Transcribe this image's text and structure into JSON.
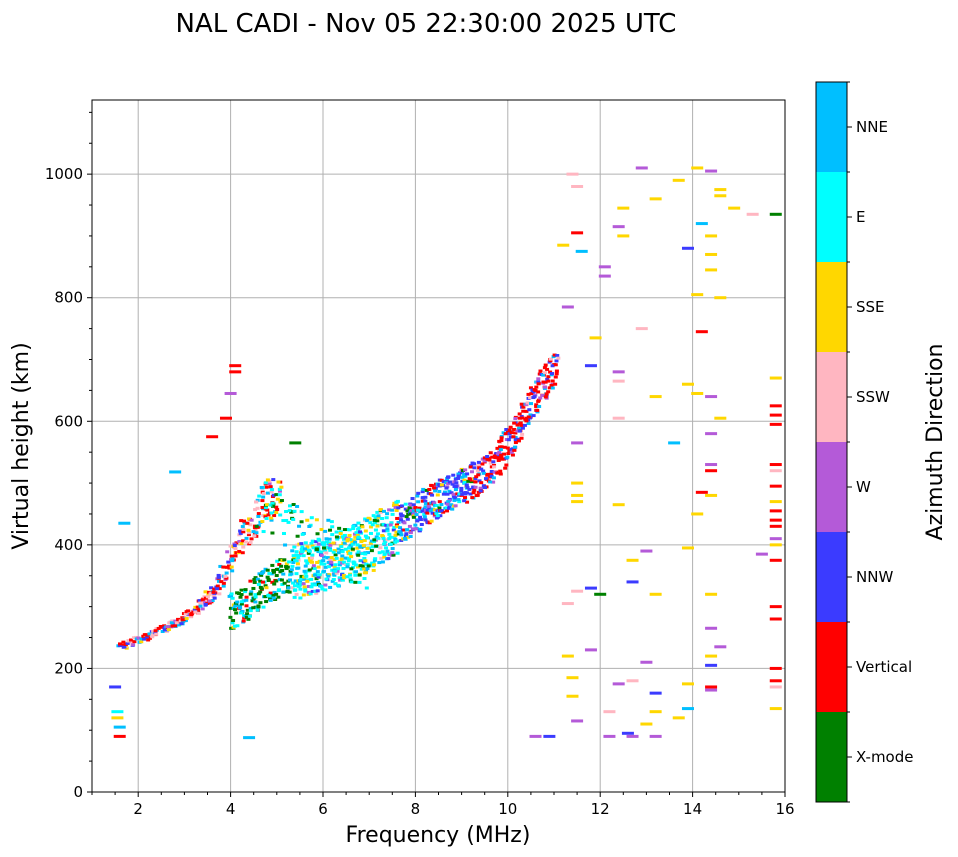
{
  "chart_data": {
    "type": "scatter",
    "title": "NAL CADI - Nov 05 22:30:00 2025 UTC",
    "xlabel": "Frequency (MHz)",
    "ylabel": "Virtual height (km)",
    "xlim": [
      1,
      16
    ],
    "ylim": [
      0,
      1120
    ],
    "xticks": [
      2,
      4,
      6,
      8,
      10,
      12,
      14,
      16
    ],
    "yticks": [
      0,
      200,
      400,
      600,
      800,
      1000
    ],
    "grid": true,
    "colorbar": {
      "label": "Azimuth Direction",
      "categories": [
        {
          "name": "X-mode",
          "color": "#008000"
        },
        {
          "name": "Vertical",
          "color": "#ff0000"
        },
        {
          "name": "NNW",
          "color": "#3b3bff"
        },
        {
          "name": "W",
          "color": "#b45ad8"
        },
        {
          "name": "SSW",
          "color": "#ffb6c1"
        },
        {
          "name": "SSE",
          "color": "#ffd700"
        },
        {
          "name": "E",
          "color": "#00ffff"
        },
        {
          "name": "NNE",
          "color": "#00bfff"
        }
      ]
    },
    "traces": [
      {
        "name": "F-layer ordinary trace",
        "points": [
          [
            1.6,
            235
          ],
          [
            1.8,
            240
          ],
          [
            2.0,
            248
          ],
          [
            2.2,
            252
          ],
          [
            2.4,
            258
          ],
          [
            2.6,
            265
          ],
          [
            2.8,
            272
          ],
          [
            3.0,
            280
          ],
          [
            3.2,
            292
          ],
          [
            3.4,
            305
          ],
          [
            3.6,
            322
          ],
          [
            3.8,
            345
          ],
          [
            4.0,
            370
          ],
          [
            4.2,
            400
          ],
          [
            4.4,
            430
          ],
          [
            4.6,
            455
          ],
          [
            4.8,
            470
          ],
          [
            5.0,
            480
          ]
        ]
      },
      {
        "name": "F-layer main trace",
        "points": [
          [
            4.0,
            290
          ],
          [
            4.4,
            310
          ],
          [
            4.8,
            335
          ],
          [
            5.2,
            350
          ],
          [
            5.6,
            360
          ],
          [
            6.0,
            370
          ],
          [
            6.4,
            378
          ],
          [
            6.8,
            392
          ],
          [
            7.2,
            410
          ],
          [
            7.6,
            430
          ],
          [
            8.0,
            450
          ],
          [
            8.4,
            470
          ],
          [
            8.8,
            485
          ],
          [
            9.2,
            500
          ],
          [
            9.6,
            520
          ],
          [
            10.0,
            560
          ],
          [
            10.3,
            600
          ],
          [
            10.6,
            640
          ],
          [
            10.9,
            670
          ],
          [
            11.1,
            690
          ]
        ]
      },
      {
        "name": "Upper spread",
        "points": [
          [
            4.6,
            510
          ],
          [
            5.0,
            500
          ],
          [
            5.4,
            470
          ],
          [
            5.8,
            450
          ],
          [
            6.2,
            440
          ],
          [
            6.6,
            430
          ],
          [
            7.0,
            420
          ]
        ]
      }
    ],
    "sparse_echoes": [
      {
        "x": 1.5,
        "y": 170,
        "az": "NNW"
      },
      {
        "x": 1.55,
        "y": 130,
        "az": "E"
      },
      {
        "x": 1.55,
        "y": 120,
        "az": "SSE"
      },
      {
        "x": 1.6,
        "y": 105,
        "az": "NNE"
      },
      {
        "x": 1.6,
        "y": 90,
        "az": "Vertical"
      },
      {
        "x": 1.7,
        "y": 435,
        "az": "NNE"
      },
      {
        "x": 4.1,
        "y": 690,
        "az": "Vertical"
      },
      {
        "x": 4.1,
        "y": 680,
        "az": "Vertical"
      },
      {
        "x": 4.0,
        "y": 645,
        "az": "W"
      },
      {
        "x": 3.9,
        "y": 605,
        "az": "Vertical"
      },
      {
        "x": 3.6,
        "y": 575,
        "az": "Vertical"
      },
      {
        "x": 2.8,
        "y": 518,
        "az": "NNE"
      },
      {
        "x": 4.4,
        "y": 88,
        "az": "NNE"
      },
      {
        "x": 5.4,
        "y": 565,
        "az": "X-mode"
      },
      {
        "x": 11.4,
        "y": 1000,
        "az": "SSW"
      },
      {
        "x": 11.5,
        "y": 980,
        "az": "SSW"
      },
      {
        "x": 11.2,
        "y": 885,
        "az": "SSE"
      },
      {
        "x": 11.5,
        "y": 905,
        "az": "Vertical"
      },
      {
        "x": 11.6,
        "y": 875,
        "az": "NNE"
      },
      {
        "x": 11.3,
        "y": 785,
        "az": "W"
      },
      {
        "x": 11.9,
        "y": 735,
        "az": "SSE"
      },
      {
        "x": 11.8,
        "y": 690,
        "az": "NNW"
      },
      {
        "x": 12.1,
        "y": 850,
        "az": "W"
      },
      {
        "x": 12.1,
        "y": 835,
        "az": "W"
      },
      {
        "x": 12.5,
        "y": 945,
        "az": "SSE"
      },
      {
        "x": 12.4,
        "y": 915,
        "az": "W"
      },
      {
        "x": 12.5,
        "y": 900,
        "az": "SSE"
      },
      {
        "x": 13.2,
        "y": 960,
        "az": "SSE"
      },
      {
        "x": 12.9,
        "y": 1010,
        "az": "W"
      },
      {
        "x": 13.7,
        "y": 990,
        "az": "SSE"
      },
      {
        "x": 14.1,
        "y": 1010,
        "az": "SSE"
      },
      {
        "x": 14.4,
        "y": 1005,
        "az": "W"
      },
      {
        "x": 14.6,
        "y": 975,
        "az": "SSE"
      },
      {
        "x": 14.6,
        "y": 965,
        "az": "SSE"
      },
      {
        "x": 14.9,
        "y": 945,
        "az": "SSE"
      },
      {
        "x": 15.3,
        "y": 935,
        "az": "SSW"
      },
      {
        "x": 15.8,
        "y": 935,
        "az": "X-mode"
      },
      {
        "x": 14.2,
        "y": 920,
        "az": "NNE"
      },
      {
        "x": 14.4,
        "y": 900,
        "az": "SSE"
      },
      {
        "x": 13.9,
        "y": 880,
        "az": "NNW"
      },
      {
        "x": 14.4,
        "y": 845,
        "az": "SSE"
      },
      {
        "x": 14.4,
        "y": 870,
        "az": "SSE"
      },
      {
        "x": 14.1,
        "y": 805,
        "az": "SSE"
      },
      {
        "x": 14.6,
        "y": 800,
        "az": "SSE"
      },
      {
        "x": 12.9,
        "y": 750,
        "az": "SSW"
      },
      {
        "x": 14.2,
        "y": 745,
        "az": "Vertical"
      },
      {
        "x": 12.4,
        "y": 680,
        "az": "W"
      },
      {
        "x": 12.4,
        "y": 665,
        "az": "SSW"
      },
      {
        "x": 13.2,
        "y": 640,
        "az": "SSE"
      },
      {
        "x": 13.9,
        "y": 660,
        "az": "SSE"
      },
      {
        "x": 14.1,
        "y": 645,
        "az": "SSE"
      },
      {
        "x": 14.4,
        "y": 640,
        "az": "W"
      },
      {
        "x": 14.6,
        "y": 605,
        "az": "SSE"
      },
      {
        "x": 12.4,
        "y": 605,
        "az": "SSW"
      },
      {
        "x": 13.6,
        "y": 565,
        "az": "NNE"
      },
      {
        "x": 14.4,
        "y": 580,
        "az": "W"
      },
      {
        "x": 14.4,
        "y": 530,
        "az": "W"
      },
      {
        "x": 14.4,
        "y": 520,
        "az": "Vertical"
      },
      {
        "x": 14.2,
        "y": 485,
        "az": "Vertical"
      },
      {
        "x": 14.4,
        "y": 480,
        "az": "SSE"
      },
      {
        "x": 14.1,
        "y": 450,
        "az": "SSE"
      },
      {
        "x": 11.5,
        "y": 565,
        "az": "W"
      },
      {
        "x": 11.5,
        "y": 500,
        "az": "SSE"
      },
      {
        "x": 11.5,
        "y": 480,
        "az": "SSE"
      },
      {
        "x": 11.5,
        "y": 470,
        "az": "SSE"
      },
      {
        "x": 12.4,
        "y": 465,
        "az": "SSE"
      },
      {
        "x": 12.7,
        "y": 375,
        "az": "SSE"
      },
      {
        "x": 13.0,
        "y": 390,
        "az": "W"
      },
      {
        "x": 13.9,
        "y": 395,
        "az": "SSE"
      },
      {
        "x": 12.7,
        "y": 340,
        "az": "NNW"
      },
      {
        "x": 13.2,
        "y": 320,
        "az": "SSE"
      },
      {
        "x": 11.5,
        "y": 325,
        "az": "SSW"
      },
      {
        "x": 11.8,
        "y": 330,
        "az": "NNW"
      },
      {
        "x": 12.0,
        "y": 320,
        "az": "X-mode"
      },
      {
        "x": 11.3,
        "y": 305,
        "az": "SSW"
      },
      {
        "x": 14.4,
        "y": 320,
        "az": "SSE"
      },
      {
        "x": 14.4,
        "y": 265,
        "az": "W"
      },
      {
        "x": 14.6,
        "y": 235,
        "az": "W"
      },
      {
        "x": 14.4,
        "y": 220,
        "az": "SSE"
      },
      {
        "x": 14.4,
        "y": 205,
        "az": "NNW"
      },
      {
        "x": 11.8,
        "y": 230,
        "az": "W"
      },
      {
        "x": 11.3,
        "y": 220,
        "az": "SSE"
      },
      {
        "x": 11.4,
        "y": 185,
        "az": "SSE"
      },
      {
        "x": 11.4,
        "y": 155,
        "az": "SSE"
      },
      {
        "x": 12.4,
        "y": 175,
        "az": "W"
      },
      {
        "x": 12.7,
        "y": 180,
        "az": "SSW"
      },
      {
        "x": 13.0,
        "y": 210,
        "az": "W"
      },
      {
        "x": 13.2,
        "y": 160,
        "az": "NNW"
      },
      {
        "x": 13.2,
        "y": 130,
        "az": "SSE"
      },
      {
        "x": 13.0,
        "y": 110,
        "az": "SSE"
      },
      {
        "x": 13.7,
        "y": 120,
        "az": "SSE"
      },
      {
        "x": 13.9,
        "y": 135,
        "az": "NNE"
      },
      {
        "x": 13.9,
        "y": 175,
        "az": "SSE"
      },
      {
        "x": 14.4,
        "y": 170,
        "az": "Vertical"
      },
      {
        "x": 14.4,
        "y": 165,
        "az": "W"
      },
      {
        "x": 12.2,
        "y": 130,
        "az": "SSW"
      },
      {
        "x": 11.5,
        "y": 115,
        "az": "W"
      },
      {
        "x": 10.6,
        "y": 90,
        "az": "W"
      },
      {
        "x": 10.9,
        "y": 90,
        "az": "NNW"
      },
      {
        "x": 12.2,
        "y": 90,
        "az": "W"
      },
      {
        "x": 12.6,
        "y": 95,
        "az": "NNW"
      },
      {
        "x": 12.7,
        "y": 90,
        "az": "W"
      },
      {
        "x": 13.2,
        "y": 90,
        "az": "W"
      },
      {
        "x": 15.8,
        "y": 670,
        "az": "SSE"
      },
      {
        "x": 15.8,
        "y": 625,
        "az": "Vertical"
      },
      {
        "x": 15.8,
        "y": 610,
        "az": "Vertical"
      },
      {
        "x": 15.8,
        "y": 595,
        "az": "Vertical"
      },
      {
        "x": 15.8,
        "y": 530,
        "az": "Vertical"
      },
      {
        "x": 15.8,
        "y": 520,
        "az": "SSW"
      },
      {
        "x": 15.8,
        "y": 495,
        "az": "Vertical"
      },
      {
        "x": 15.8,
        "y": 470,
        "az": "SSE"
      },
      {
        "x": 15.8,
        "y": 455,
        "az": "Vertical"
      },
      {
        "x": 15.8,
        "y": 440,
        "az": "Vertical"
      },
      {
        "x": 15.8,
        "y": 430,
        "az": "Vertical"
      },
      {
        "x": 15.8,
        "y": 410,
        "az": "W"
      },
      {
        "x": 15.8,
        "y": 400,
        "az": "SSE"
      },
      {
        "x": 15.5,
        "y": 385,
        "az": "W"
      },
      {
        "x": 15.8,
        "y": 375,
        "az": "Vertical"
      },
      {
        "x": 15.8,
        "y": 300,
        "az": "Vertical"
      },
      {
        "x": 15.8,
        "y": 280,
        "az": "Vertical"
      },
      {
        "x": 15.8,
        "y": 200,
        "az": "Vertical"
      },
      {
        "x": 15.8,
        "y": 180,
        "az": "Vertical"
      },
      {
        "x": 15.8,
        "y": 170,
        "az": "SSW"
      },
      {
        "x": 15.8,
        "y": 135,
        "az": "SSE"
      }
    ]
  }
}
